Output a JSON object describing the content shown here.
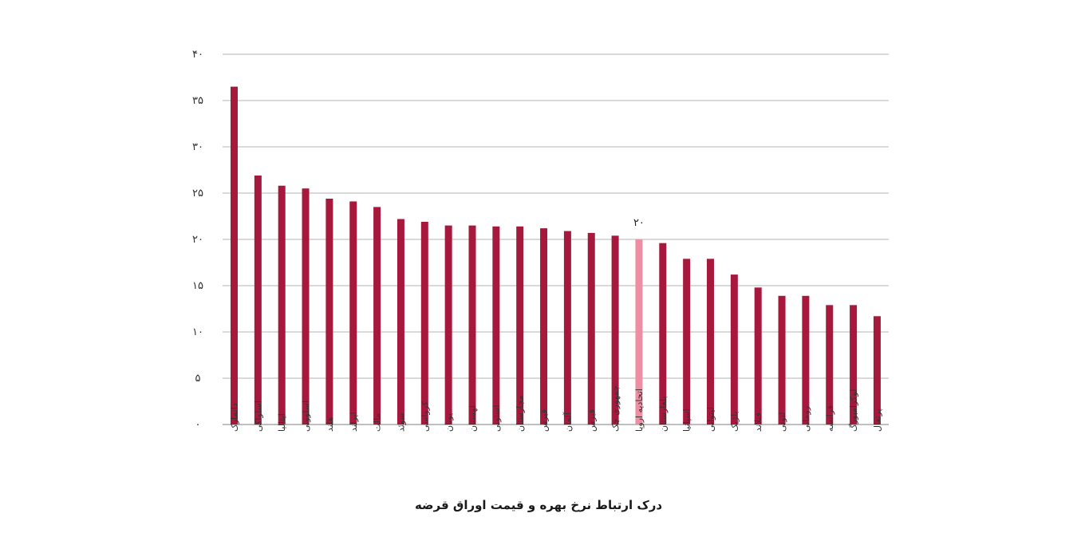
{
  "chart_data": {
    "type": "bar",
    "title": "درک ارتباط نرخ بهره و قیمت اوراق قرضه",
    "xlabel": "",
    "ylabel": "",
    "ylim": [
      0,
      40
    ],
    "yticks": [
      0,
      5,
      10,
      15,
      20,
      25,
      30,
      35,
      40
    ],
    "ytick_labels": [
      "۰",
      "۵",
      "۱۰",
      "۱۵",
      "۲۰",
      "۲۵",
      "۳۰",
      "۳۵",
      "۴۰"
    ],
    "grid": true,
    "categories": [
      "دانمارک",
      "اسلواکی",
      "ایتالیا",
      "اسلوونی",
      "هلند",
      "ایرلند",
      "مالت",
      "سوئد",
      "کرواسی",
      "یونان",
      "لهستان",
      "استونی",
      "مجارستان",
      "قبرس",
      "آلمان",
      "قبرس",
      "جمهوری چک",
      "اتحادیه اروپا",
      "بلغارستان",
      "اسپانیا",
      "لیتوانی",
      "بلژیک",
      "فنلاند",
      "لتونی",
      "رومانی",
      "فرانسه",
      "لوکزامبورگ",
      "پرتغال"
    ],
    "values": [
      36.5,
      26.9,
      25.8,
      25.5,
      24.4,
      24.1,
      23.5,
      22.2,
      21.9,
      21.5,
      21.5,
      21.4,
      21.4,
      21.2,
      20.9,
      20.7,
      20.4,
      20.0,
      19.6,
      17.9,
      17.9,
      16.2,
      14.8,
      13.9,
      13.9,
      12.9,
      12.9,
      11.7
    ],
    "highlight_index": 17,
    "highlight_label": "۲۰",
    "colors": {
      "bar": "#a6193c",
      "highlight": "#ee8ea3",
      "grid": "#d9d9d9",
      "text": "#333333"
    }
  }
}
